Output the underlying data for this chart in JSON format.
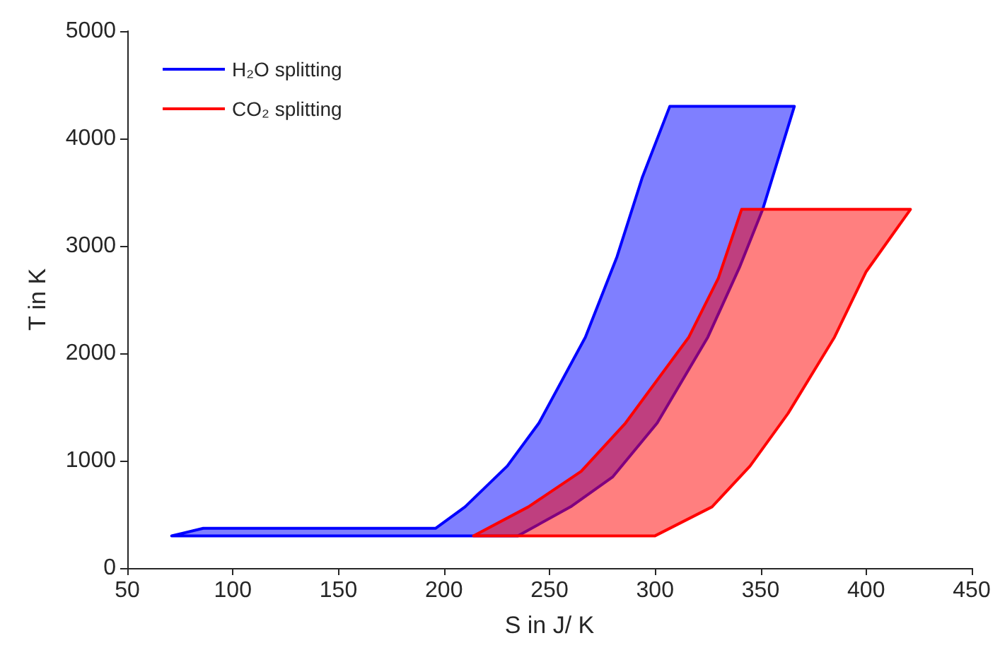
{
  "chart_data": {
    "type": "area",
    "xlabel": "S in J/ K",
    "ylabel": "T in K",
    "xlim": [
      50,
      450
    ],
    "xticks": [
      50,
      100,
      150,
      200,
      250,
      300,
      350,
      400,
      450
    ],
    "ylim": [
      0,
      5000
    ],
    "yticks": [
      0,
      1000,
      2000,
      3000,
      4000,
      5000
    ],
    "grid": false,
    "legend": "top left",
    "series": [
      {
        "name": "H₂O splitting",
        "color": "#0000ff",
        "x": [
          71,
          86,
          196,
          210,
          230,
          245,
          267,
          282,
          294,
          307,
          366,
          351,
          340,
          325,
          301,
          280,
          260,
          235,
          71
        ],
        "values": [
          300,
          370,
          370,
          570,
          950,
          1350,
          2150,
          2900,
          3640,
          4300,
          4300,
          3340,
          2800,
          2150,
          1350,
          850,
          570,
          300,
          300
        ]
      },
      {
        "name": "CO₂ splitting",
        "color": "#ff0000",
        "x": [
          214,
          240,
          265,
          286,
          316,
          330,
          341,
          421,
          400,
          385,
          363,
          345,
          327,
          300,
          214
        ],
        "values": [
          300,
          570,
          900,
          1350,
          2150,
          2700,
          3340,
          3340,
          2760,
          2150,
          1440,
          950,
          570,
          300,
          300
        ]
      }
    ]
  }
}
